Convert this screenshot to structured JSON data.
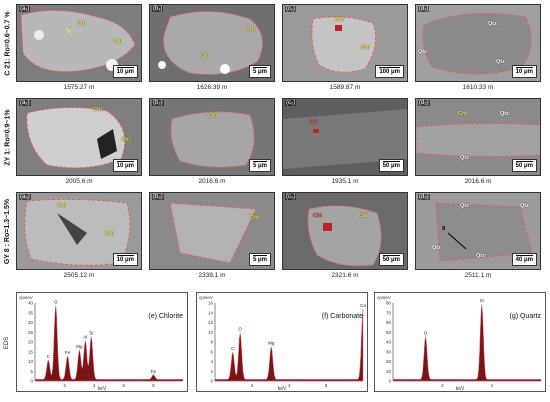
{
  "rows": [
    {
      "label": "C 21: Ro=0.6~0.7 %",
      "panels": [
        {
          "label": "(a₁)",
          "depth": "1575.27 m",
          "scale": "10 μm",
          "minerals": [
            "Chl",
            "Chl"
          ]
        },
        {
          "label": "(b₁)",
          "depth": "1626.39 m",
          "scale": "5 μm",
          "minerals": [
            "Chl",
            "Chl"
          ]
        },
        {
          "label": "(c₁)",
          "depth": "1589.87 m",
          "scale": "100 μm",
          "minerals": [
            "Chl",
            "Chl"
          ]
        },
        {
          "label": "(d₁)",
          "depth": "1610.33 m",
          "scale": "10 μm",
          "minerals": [
            "Qtz",
            "Qtz",
            "Qtz"
          ]
        }
      ]
    },
    {
      "label": "ZY 1: Ro=0.9~1%",
      "panels": [
        {
          "label": "(a₂)",
          "depth": "2005.6 m",
          "scale": "10 μm",
          "minerals": [
            "Chl",
            "Chl"
          ]
        },
        {
          "label": "(b₂)",
          "depth": "2016.6 m",
          "scale": "5 μm",
          "minerals": [
            "Chl"
          ]
        },
        {
          "label": "(c₂)",
          "depth": "1935.1 m",
          "scale": "50 μm",
          "minerals": [
            "Cal"
          ]
        },
        {
          "label": "(d₂)",
          "depth": "2016.6 m",
          "scale": "50 μm",
          "minerals": [
            "Chl",
            "Qtz",
            "Qtz"
          ]
        }
      ]
    },
    {
      "label": "GY 8 : Ro=1.3~1.5%",
      "panels": [
        {
          "label": "(a₃)",
          "depth": "2505.12 m",
          "scale": "10 μm",
          "minerals": [
            "Chl",
            "Chl"
          ]
        },
        {
          "label": "(b₃)",
          "depth": "2339.1 m",
          "scale": "5 μm",
          "minerals": [
            "Chl"
          ]
        },
        {
          "label": "(c₃)",
          "depth": "2321.6 m",
          "scale": "50 μm",
          "minerals": [
            "Chl",
            "Cal"
          ]
        },
        {
          "label": "(d₃)",
          "depth": "2511.1 m",
          "scale": "40 μm",
          "minerals": [
            "Qtz",
            "Qtz",
            "Qtz",
            "Qtz",
            "g"
          ]
        }
      ]
    }
  ],
  "eds": {
    "axis_label": "EDS",
    "unit_y": "cps/eV",
    "unit_x": "keV",
    "colors": {
      "fill": "#7a1515",
      "line": "#e0607a"
    },
    "spectra": [
      {
        "title": "(e) Chlorite",
        "y_ticks": [
          "0",
          "5",
          "10",
          "15",
          "20",
          "25",
          "30",
          "35",
          "40"
        ],
        "x_ticks": [
          "2",
          "4",
          "6",
          "8"
        ],
        "peak_labels": [
          "C",
          "O",
          "Fe",
          "Mg",
          "Al",
          "Si",
          "Fe"
        ]
      },
      {
        "title": "(f) Carbonate",
        "y_ticks": [
          "0",
          "2",
          "4",
          "6",
          "8",
          "10",
          "12",
          "14",
          "16"
        ],
        "x_ticks": [
          "2",
          "4",
          "6"
        ],
        "peak_labels": [
          "C",
          "O",
          "Mg",
          "Ca"
        ]
      },
      {
        "title": "(g) Quartz",
        "y_ticks": [
          "0",
          "10",
          "20",
          "30",
          "40",
          "50",
          "60",
          "70",
          "80"
        ],
        "x_ticks": [
          "2",
          "4"
        ],
        "peak_labels": [
          "O",
          "Si"
        ]
      }
    ]
  }
}
